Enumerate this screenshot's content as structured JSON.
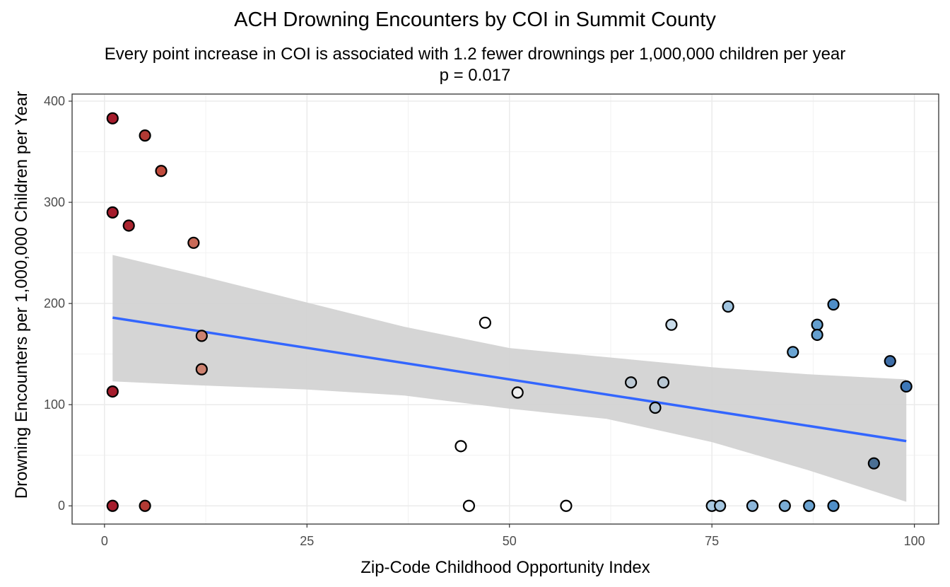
{
  "chart_data": {
    "type": "scatter",
    "title": "ACH Drowning Encounters by COI in Summit County",
    "subtitle_lines": [
      "Every point increase in COI is associated with 1.2 fewer drownings per 1,000,000 children per year",
      "p = 0.017"
    ],
    "xlabel": "Zip-Code Childhood Opportunity Index",
    "ylabel": "Drowning Encounters per 1,000,000 Children per Year",
    "xlim": [
      -4,
      103
    ],
    "ylim": [
      -18,
      407
    ],
    "x_ticks": [
      0,
      25,
      50,
      75,
      100
    ],
    "y_ticks": [
      0,
      100,
      200,
      300,
      400
    ],
    "x_minor_gridlines": [
      12.5,
      37.5,
      62.5,
      87.5
    ],
    "y_minor_gridlines": [
      50,
      150,
      250,
      350
    ],
    "grid": true,
    "point_color_scale": "diverging red (low COI) to white (mid) to blue (high COI)",
    "points": [
      {
        "x": 1,
        "y": 383,
        "color": "#a51c2c"
      },
      {
        "x": 5,
        "y": 366,
        "color": "#b23a34"
      },
      {
        "x": 7,
        "y": 331,
        "color": "#c04b3c"
      },
      {
        "x": 1,
        "y": 290,
        "color": "#a51c2c"
      },
      {
        "x": 3,
        "y": 277,
        "color": "#ab2530"
      },
      {
        "x": 11,
        "y": 260,
        "color": "#c96a58"
      },
      {
        "x": 12,
        "y": 168,
        "color": "#cd8270"
      },
      {
        "x": 12,
        "y": 135,
        "color": "#cd8270"
      },
      {
        "x": 1,
        "y": 113,
        "color": "#a51c2c"
      },
      {
        "x": 1,
        "y": 0,
        "color": "#a51c2c"
      },
      {
        "x": 5,
        "y": 0,
        "color": "#b23a34"
      },
      {
        "x": 44,
        "y": 59,
        "color": "#ffffff"
      },
      {
        "x": 45,
        "y": 0,
        "color": "#ffffff"
      },
      {
        "x": 47,
        "y": 181,
        "color": "#ffffff"
      },
      {
        "x": 51,
        "y": 112,
        "color": "#f0f0f0"
      },
      {
        "x": 57,
        "y": 0,
        "color": "#ffffff"
      },
      {
        "x": 65,
        "y": 122,
        "color": "#bcc9d4"
      },
      {
        "x": 68,
        "y": 97,
        "color": "#b4c4d2"
      },
      {
        "x": 69,
        "y": 122,
        "color": "#b8c7d3"
      },
      {
        "x": 70,
        "y": 179,
        "color": "#c9dcea"
      },
      {
        "x": 75,
        "y": 0,
        "color": "#a8c9e2"
      },
      {
        "x": 76,
        "y": 0,
        "color": "#a4c6e0"
      },
      {
        "x": 77,
        "y": 197,
        "color": "#a0c4df"
      },
      {
        "x": 80,
        "y": 0,
        "color": "#8cb6da"
      },
      {
        "x": 84,
        "y": 0,
        "color": "#7aacd6"
      },
      {
        "x": 85,
        "y": 152,
        "color": "#6aa4d2"
      },
      {
        "x": 87,
        "y": 0,
        "color": "#6aa2d0"
      },
      {
        "x": 88,
        "y": 179,
        "color": "#649fcf"
      },
      {
        "x": 88,
        "y": 169,
        "color": "#649fcf"
      },
      {
        "x": 90,
        "y": 199,
        "color": "#4f8ec8"
      },
      {
        "x": 90,
        "y": 0,
        "color": "#4f8ec8"
      },
      {
        "x": 95,
        "y": 42,
        "color": "#4a6f94"
      },
      {
        "x": 97,
        "y": 143,
        "color": "#3e6ea8"
      },
      {
        "x": 99,
        "y": 118,
        "color": "#3e78b8"
      }
    ],
    "trend_line": {
      "color": "#3366ff",
      "x": [
        1,
        99
      ],
      "y": [
        186,
        64
      ]
    },
    "confidence_band": {
      "color": "#d3d3d3",
      "x": [
        1,
        12,
        25,
        37,
        50,
        62,
        75,
        87,
        99
      ],
      "upper": [
        248,
        227,
        201,
        177,
        156,
        147,
        137,
        130,
        125
      ],
      "lower": [
        123,
        119,
        115,
        109,
        96,
        86,
        63,
        35,
        4
      ]
    }
  }
}
